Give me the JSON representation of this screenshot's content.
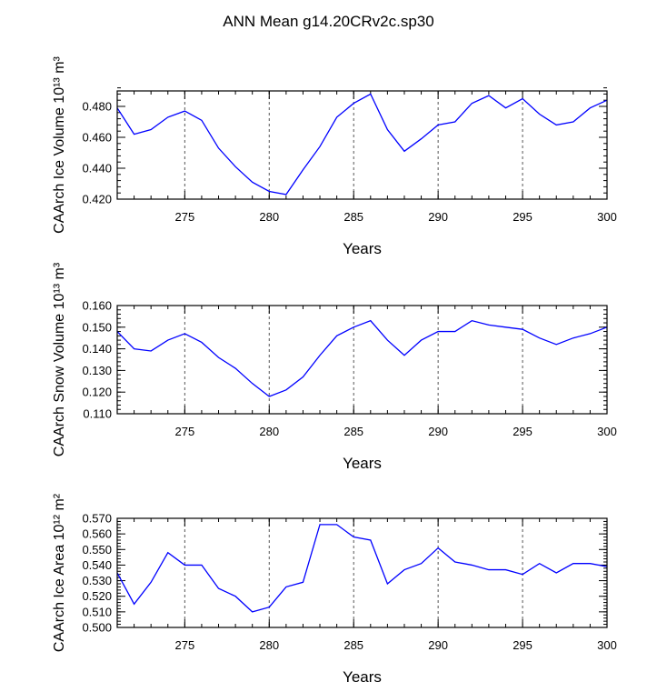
{
  "figure": {
    "title": "ANN Mean g14.20CRv2c.sp30"
  },
  "chart_data": [
    {
      "type": "line",
      "name": "ice-volume",
      "ylabel": "CAArch Ice Volume 10¹³ m³",
      "xlabel": "Years",
      "xlim": [
        271,
        300
      ],
      "ylim": [
        0.42,
        0.49
      ],
      "x_ticks": [
        275,
        280,
        285,
        290,
        295,
        300
      ],
      "x_tick_labels": [
        "275",
        "280",
        "285",
        "290",
        "295",
        "300"
      ],
      "y_ticks": [
        0.42,
        0.44,
        0.46,
        0.48
      ],
      "y_tick_labels": [
        "0.420",
        "0.440",
        "0.460",
        "0.480"
      ],
      "y_minor_step": 0.004,
      "x_minor_step": 1,
      "grid": "vertical dashed at major x ticks",
      "color": "#0000ff",
      "x": [
        271,
        272,
        273,
        274,
        275,
        276,
        277,
        278,
        279,
        280,
        281,
        282,
        283,
        284,
        285,
        286,
        287,
        288,
        289,
        290,
        291,
        292,
        293,
        294,
        295,
        296,
        297,
        298,
        299,
        300
      ],
      "values": [
        0.479,
        0.462,
        0.465,
        0.473,
        0.477,
        0.471,
        0.453,
        0.441,
        0.431,
        0.425,
        0.423,
        0.439,
        0.454,
        0.473,
        0.482,
        0.488,
        0.465,
        0.451,
        0.459,
        0.468,
        0.47,
        0.482,
        0.487,
        0.479,
        0.485,
        0.475,
        0.468,
        0.47,
        0.479,
        0.484
      ]
    },
    {
      "type": "line",
      "name": "snow-volume",
      "ylabel": "CAArch Snow Volume 10¹³ m³",
      "xlabel": "Years",
      "xlim": [
        271,
        300
      ],
      "ylim": [
        0.11,
        0.16
      ],
      "x_ticks": [
        275,
        280,
        285,
        290,
        295,
        300
      ],
      "x_tick_labels": [
        "275",
        "280",
        "285",
        "290",
        "295",
        "300"
      ],
      "y_ticks": [
        0.11,
        0.12,
        0.13,
        0.14,
        0.15,
        0.16
      ],
      "y_tick_labels": [
        "0.110",
        "0.120",
        "0.130",
        "0.140",
        "0.150",
        "0.160"
      ],
      "y_minor_step": 0.002,
      "x_minor_step": 1,
      "grid": "vertical dashed at major x ticks",
      "color": "#0000ff",
      "x": [
        271,
        272,
        273,
        274,
        275,
        276,
        277,
        278,
        279,
        280,
        281,
        282,
        283,
        284,
        285,
        286,
        287,
        288,
        289,
        290,
        291,
        292,
        293,
        294,
        295,
        296,
        297,
        298,
        299,
        300
      ],
      "values": [
        0.148,
        0.14,
        0.139,
        0.144,
        0.147,
        0.143,
        0.136,
        0.131,
        0.124,
        0.118,
        0.121,
        0.127,
        0.137,
        0.146,
        0.15,
        0.153,
        0.144,
        0.137,
        0.144,
        0.148,
        0.148,
        0.153,
        0.151,
        0.15,
        0.149,
        0.145,
        0.142,
        0.145,
        0.147,
        0.15
      ]
    },
    {
      "type": "line",
      "name": "ice-area",
      "ylabel": "CAArch Ice Area 10¹² m²",
      "xlabel": "Years",
      "xlim": [
        271,
        300
      ],
      "ylim": [
        0.5,
        0.57
      ],
      "x_ticks": [
        275,
        280,
        285,
        290,
        295,
        300
      ],
      "x_tick_labels": [
        "275",
        "280",
        "285",
        "290",
        "295",
        "300"
      ],
      "y_ticks": [
        0.5,
        0.51,
        0.52,
        0.53,
        0.54,
        0.55,
        0.56,
        0.57
      ],
      "y_tick_labels": [
        "0.500",
        "0.510",
        "0.520",
        "0.530",
        "0.540",
        "0.550",
        "0.560",
        "0.570"
      ],
      "y_minor_step": 0.002,
      "x_minor_step": 1,
      "grid": "vertical dashed at major x ticks",
      "color": "#0000ff",
      "x": [
        271,
        272,
        273,
        274,
        275,
        276,
        277,
        278,
        279,
        280,
        281,
        282,
        283,
        284,
        285,
        286,
        287,
        288,
        289,
        290,
        291,
        292,
        293,
        294,
        295,
        296,
        297,
        298,
        299,
        300
      ],
      "values": [
        0.535,
        0.515,
        0.529,
        0.548,
        0.54,
        0.54,
        0.525,
        0.52,
        0.51,
        0.513,
        0.526,
        0.529,
        0.566,
        0.566,
        0.558,
        0.556,
        0.528,
        0.537,
        0.541,
        0.551,
        0.542,
        0.54,
        0.537,
        0.537,
        0.534,
        0.541,
        0.535,
        0.541,
        0.541,
        0.539
      ]
    }
  ]
}
